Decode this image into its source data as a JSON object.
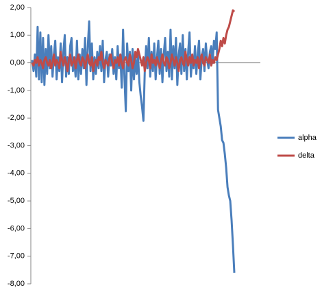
{
  "chart_data": {
    "type": "line",
    "ylim": [
      -8,
      2
    ],
    "yticks": [
      {
        "value": 2,
        "label": "2,00"
      },
      {
        "value": 1,
        "label": "1,00"
      },
      {
        "value": 0,
        "label": "0,00"
      },
      {
        "value": -1,
        "label": "-1,00"
      },
      {
        "value": -2,
        "label": "-2,00"
      },
      {
        "value": -3,
        "label": "-3,00"
      },
      {
        "value": -4,
        "label": "-4,00"
      },
      {
        "value": -5,
        "label": "-5,00"
      },
      {
        "value": -6,
        "label": "-6,00"
      },
      {
        "value": -7,
        "label": "-7,00"
      },
      {
        "value": -8,
        "label": "-8,00"
      }
    ],
    "legend": "right",
    "series": [
      {
        "name": "alpha",
        "color": "#4a7ebb",
        "values": [
          0.1,
          -0.3,
          0.3,
          -0.5,
          1.3,
          -0.6,
          1.1,
          -0.7,
          0.9,
          -0.8,
          0.5,
          -0.4,
          1.0,
          -0.2,
          0.6,
          -0.5,
          0.3,
          0.8,
          -0.6,
          0.2,
          -0.3,
          0.7,
          -0.7,
          0.4,
          1.0,
          -0.5,
          0.2,
          -0.4,
          0.6,
          0.9,
          -0.3,
          0.1,
          -0.5,
          0.8,
          -0.6,
          0.3,
          -0.4,
          0.5,
          -0.2,
          0.9,
          -0.8,
          0.6,
          1.5,
          -0.3,
          0.7,
          -0.6,
          0.2,
          -0.4,
          0.4,
          -0.2,
          0.6,
          -0.3,
          0.8,
          -0.7,
          0.1,
          0.4,
          -0.5,
          0.3,
          -0.1,
          0.5,
          -0.4,
          0.2,
          -0.6,
          0.6,
          -0.2,
          0.3,
          -0.9,
          1.2,
          -0.5,
          -1.75,
          0.7,
          -0.3,
          0.4,
          -1.0,
          0.5,
          -0.6,
          0.2,
          -0.4,
          0.3,
          -0.7,
          -1.2,
          -1.6,
          -2.1,
          -0.3,
          0.6,
          -0.2,
          0.9,
          -0.5,
          0.4,
          -0.3,
          0.7,
          -0.6,
          0.2,
          0.8,
          -0.4,
          0.5,
          -0.7,
          0.3,
          0.9,
          -0.3,
          0.4,
          -0.5,
          1.2,
          -0.6,
          0.6,
          -0.2,
          0.9,
          -0.8,
          0.3,
          0.7,
          -0.4,
          1.0,
          -0.3,
          0.5,
          -0.6,
          0.4,
          1.1,
          -0.5,
          0.2,
          -0.2,
          0.6,
          -0.4,
          0.3,
          0.8,
          -0.6,
          0.2,
          0.5,
          -0.3,
          0.7,
          0.1,
          -0.2,
          0.4,
          0.6,
          0.0,
          0.8,
          0.5,
          1.1,
          -1.7,
          -2.0,
          -2.3,
          -2.8,
          -2.9,
          -3.3,
          -3.8,
          -4.5,
          -4.8,
          -5.0,
          -5.7,
          -6.6,
          -7.6
        ]
      },
      {
        "name": "delta",
        "color": "#be4b48",
        "values": [
          0.0,
          -0.1,
          0.1,
          0.0,
          0.2,
          -0.1,
          0.1,
          0.0,
          -0.2,
          0.1,
          0.2,
          0.0,
          -0.1,
          0.1,
          -0.2,
          0.0,
          0.3,
          -0.1,
          0.1,
          0.0,
          -0.2,
          0.4,
          0.1,
          -0.1,
          0.2,
          0.0,
          -0.3,
          0.1,
          0.3,
          -0.1,
          0.0,
          0.2,
          -0.2,
          0.1,
          0.3,
          0.0,
          -0.1,
          0.2,
          0.1,
          -0.2,
          0.1,
          0.3,
          0.0,
          -0.1,
          0.2,
          -0.3,
          0.0,
          0.1,
          -0.1,
          0.2,
          0.1,
          0.4,
          0.0,
          -0.2,
          0.1,
          0.0,
          -0.1,
          0.2,
          0.3,
          0.0,
          -0.2,
          0.1,
          0.0,
          0.2,
          -0.1,
          0.3,
          0.0,
          -0.2,
          0.1,
          0.2,
          0.0,
          -0.1,
          0.3,
          0.1,
          -0.2,
          0.0,
          0.4,
          0.2,
          0.5,
          0.3,
          0.1,
          -0.1,
          0.2,
          -0.3,
          0.0,
          0.2,
          0.1,
          -0.2,
          0.3,
          0.0,
          0.1,
          -0.1,
          0.2,
          0.0,
          -0.2,
          0.1,
          0.3,
          0.0,
          -0.1,
          0.2,
          0.1,
          -0.2,
          0.0,
          0.3,
          0.1,
          -0.1,
          0.2,
          0.0,
          -0.3,
          0.1,
          0.2,
          0.0,
          -0.1,
          0.4,
          0.1,
          -0.1,
          0.2,
          0.0,
          0.3,
          -0.1,
          0.1,
          0.0,
          0.2,
          -0.2,
          0.1,
          0.3,
          0.0,
          -0.1,
          0.2,
          0.1,
          0.0,
          0.3,
          -0.1,
          0.1,
          0.0,
          0.2,
          0.1,
          0.3,
          0.5,
          0.8,
          0.6,
          0.9,
          0.7,
          1.0,
          1.2,
          1.3,
          1.5,
          1.7,
          1.9,
          1.85
        ]
      }
    ]
  }
}
